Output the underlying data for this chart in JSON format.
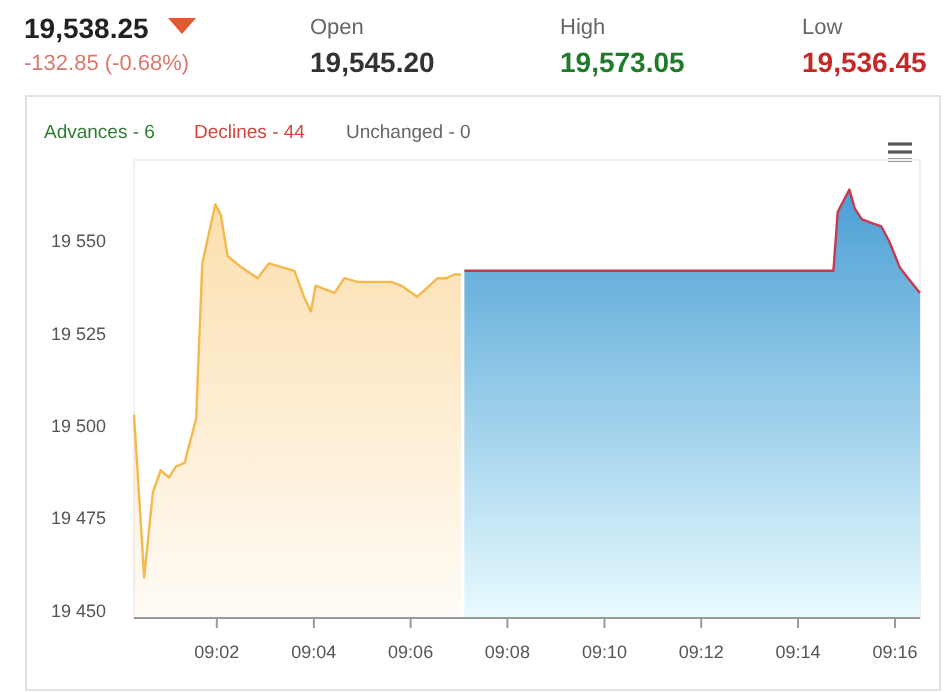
{
  "chart_data": {
    "type": "area",
    "annotations": [
      "19,538.25",
      "-132.85 (-0.68%)",
      "Open",
      "19,545.20",
      "High",
      "19,573.05",
      "Low",
      "19,536.45",
      "Advances - 6",
      "Declines - 44",
      "Unchanged - 0"
    ],
    "series": [
      {
        "color": "#f7b84b",
        "x": [
          9.0048,
          9.0083,
          9.0113,
          9.014,
          9.0168,
          9.0192,
          9.0222,
          9.0262,
          9.0283,
          9.0328,
          9.0347,
          9.037,
          9.0417,
          9.0473,
          9.0512,
          9.06,
          9.0633,
          9.0657,
          9.0673,
          9.0738,
          9.0772,
          9.0818,
          9.0933,
          9.0967,
          9.1023,
          9.1093,
          9.1123,
          9.115,
          9.1173
        ],
        "values": [
          19503,
          19459,
          19482,
          19488,
          19486,
          19489,
          19490,
          19502,
          19544,
          19560,
          19557,
          19546,
          19543,
          19540,
          19544,
          19542,
          19535,
          19531,
          19538,
          19536,
          19540,
          19539,
          19539,
          19538,
          19535,
          19540,
          19540,
          19541,
          19541
        ]
      },
      {
        "color": "#4a9fd4",
        "x": [
          9.1185,
          9.2455,
          9.247,
          9.251,
          9.2528,
          9.2552,
          9.2585,
          9.262,
          9.2647,
          9.2683,
          9.2712,
          9.2753
        ],
        "values": [
          19542,
          19542,
          19558,
          19564,
          19559,
          19556,
          19555,
          19554,
          19550,
          19543,
          19540,
          19536
        ]
      }
    ],
    "xlim": [
      9.0048,
      9.2753
    ],
    "xticks": [
      {
        "value": 9.0333,
        "label": "09:02"
      },
      {
        "value": 9.0667,
        "label": "09:04"
      },
      {
        "value": 9.1,
        "label": "09:06"
      },
      {
        "value": 9.1333,
        "label": "09:08"
      },
      {
        "value": 9.1667,
        "label": "09:10"
      },
      {
        "value": 9.2,
        "label": "09:12"
      },
      {
        "value": 9.2333,
        "label": "09:14"
      },
      {
        "value": 9.2667,
        "label": "09:16"
      }
    ],
    "ylim": [
      19448,
      19572
    ],
    "yticks": [
      {
        "value": 19450,
        "label": "19 450"
      },
      {
        "value": 19475,
        "label": "19 475"
      },
      {
        "value": 19500,
        "label": "19 500"
      },
      {
        "value": 19525,
        "label": "19 525"
      },
      {
        "value": 19550,
        "label": "19 550"
      }
    ],
    "grid": false
  }
}
